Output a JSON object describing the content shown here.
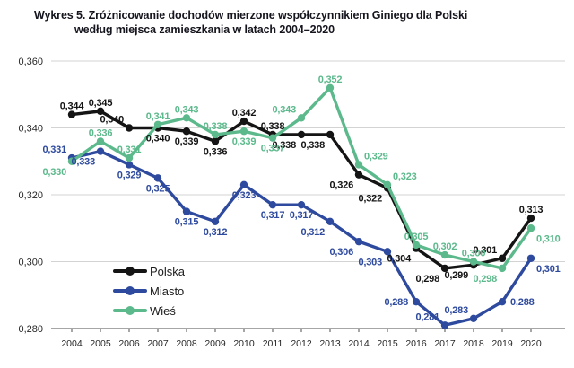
{
  "title": {
    "line1": "Wykres 5. Zróżnicowanie dochodów mierzone współczynnikiem Giniego dla Polski",
    "line2": "według miejsca zamieszkania w latach 2004–2020"
  },
  "chart_data": {
    "type": "line",
    "x": [
      2004,
      2005,
      2006,
      2007,
      2008,
      2009,
      2010,
      2011,
      2012,
      2013,
      2014,
      2015,
      2016,
      2017,
      2018,
      2019,
      2020
    ],
    "series": [
      {
        "name": "Polska",
        "color": "#141414",
        "values": [
          0.344,
          0.345,
          0.34,
          0.34,
          0.339,
          0.336,
          0.342,
          0.338,
          0.338,
          0.338,
          0.326,
          0.322,
          0.304,
          0.298,
          0.299,
          0.301,
          0.313
        ],
        "label_sides": [
          "a",
          "a",
          "al",
          "b",
          "b",
          "b",
          "a",
          "a",
          "bl",
          "bl",
          "bl",
          "bl",
          "bl",
          "bl",
          "bl",
          "al",
          "a"
        ]
      },
      {
        "name": "Miasto",
        "color": "#2e4a9e",
        "values": [
          0.331,
          0.333,
          0.329,
          0.325,
          0.315,
          0.312,
          0.323,
          0.317,
          0.317,
          0.312,
          0.306,
          0.303,
          0.288,
          0.281,
          0.283,
          0.288,
          0.301
        ],
        "label_sides": [
          "al",
          "bl",
          "b",
          "b",
          "b",
          "b",
          "b",
          "b",
          "b",
          "bl",
          "bl",
          "bl",
          "l",
          "al",
          "al",
          "r",
          "br"
        ]
      },
      {
        "name": "Wieś",
        "color": "#5cb98c",
        "values": [
          0.33,
          0.336,
          0.331,
          0.341,
          0.343,
          0.338,
          0.339,
          0.337,
          0.343,
          0.352,
          0.329,
          0.323,
          0.305,
          0.302,
          0.3,
          0.298,
          0.31
        ],
        "label_sides": [
          "bl",
          "a",
          "a",
          "a",
          "a",
          "a",
          "b",
          "b",
          "al",
          "a",
          "ar",
          "ar",
          "a",
          "a",
          "a",
          "bl",
          "br"
        ]
      }
    ],
    "ylim": [
      0.28,
      0.36
    ],
    "yticks": [
      0.36,
      0.34,
      0.32,
      0.3,
      0.28
    ],
    "decimal_separator": ",",
    "grid": "horizontal",
    "legend_position": "inside-bottom-left",
    "colors": {
      "grid": "#d3d3d3",
      "axis": "#4d4d4d",
      "tick_text": "#262626"
    }
  }
}
